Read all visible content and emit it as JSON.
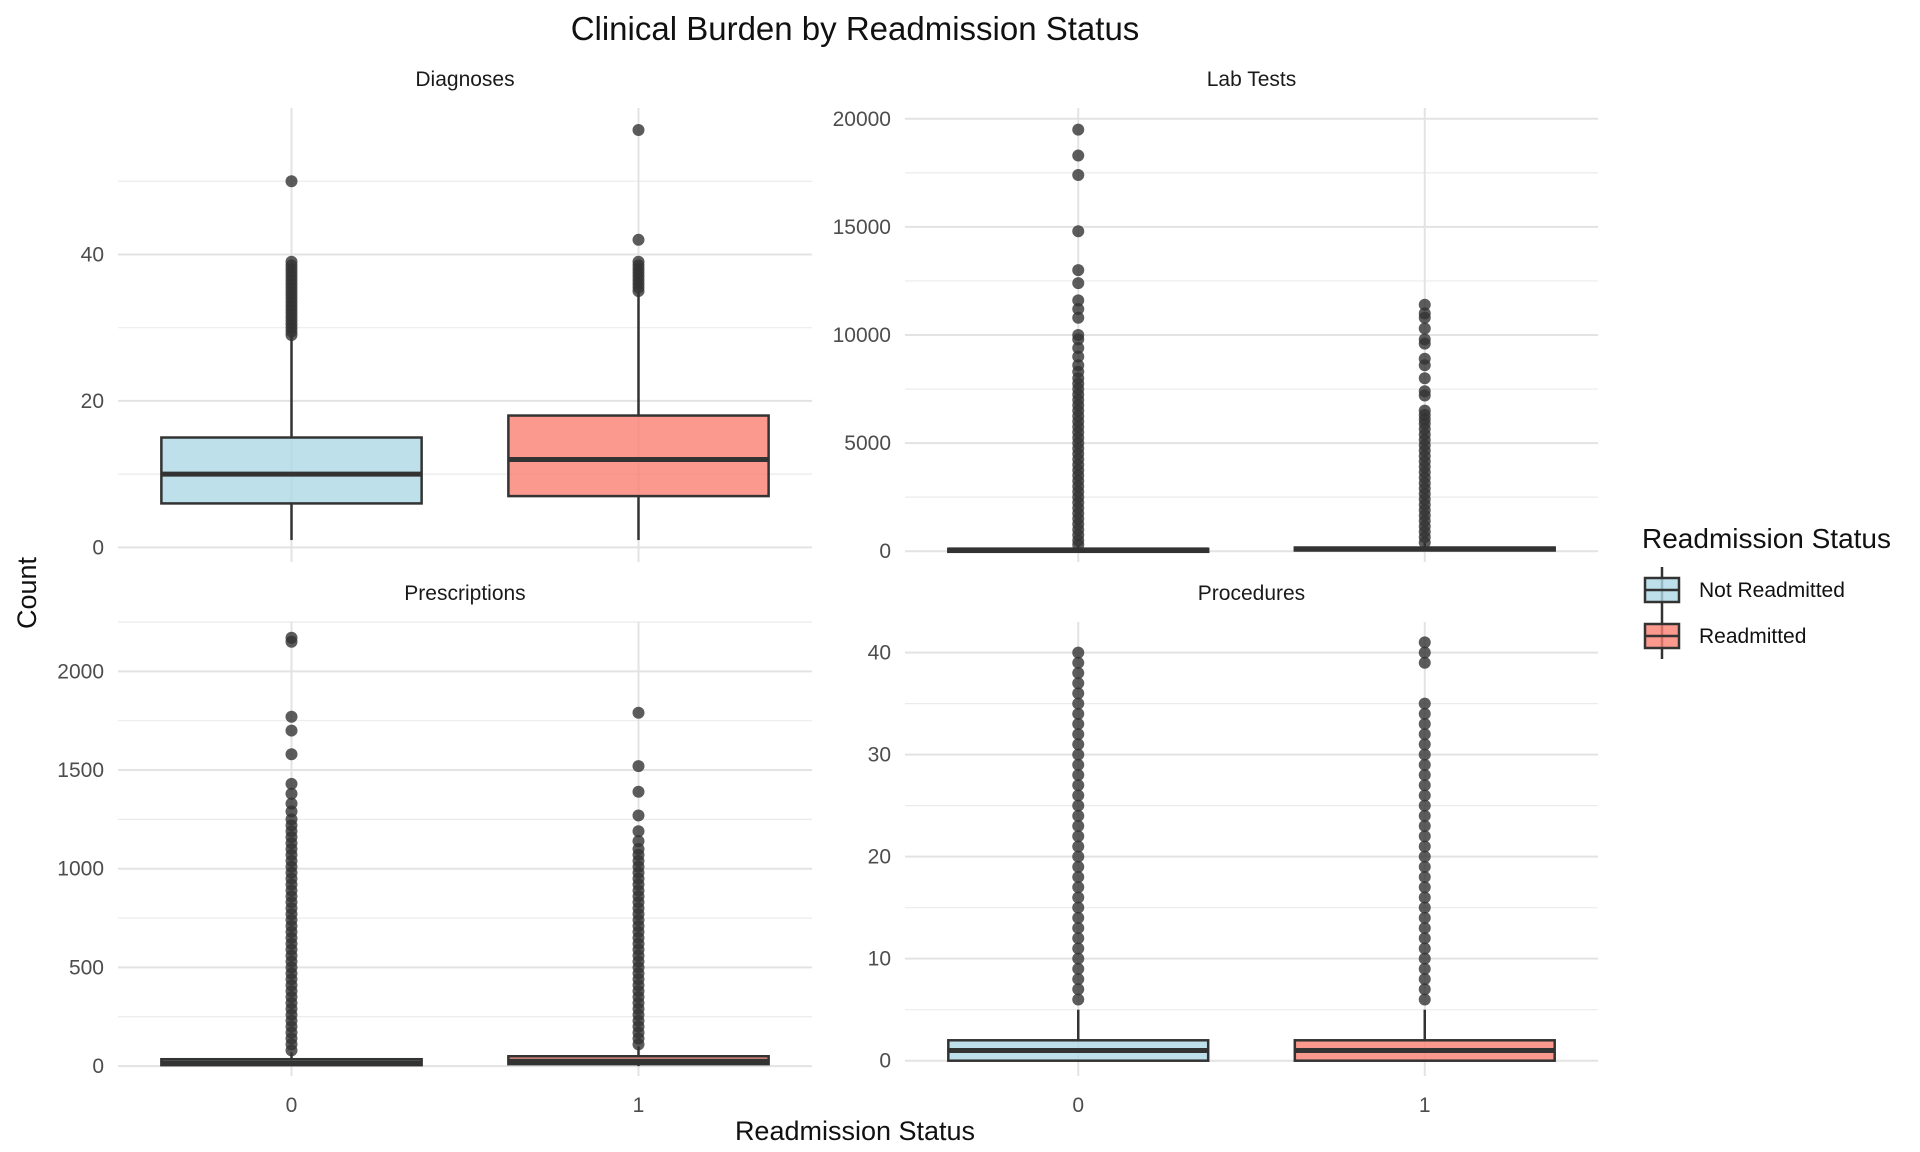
{
  "chart_data": {
    "type": "boxplot",
    "title": "Clinical Burden by Readmission Status",
    "xlabel": "Readmission Status",
    "ylabel": "Count",
    "categories": [
      "0",
      "1"
    ],
    "legend": {
      "title": "Readmission Status",
      "position": "right",
      "entries": [
        {
          "label": "Not Readmitted",
          "color": "#ADD8E6"
        },
        {
          "label": "Readmitted",
          "color": "#FA8072"
        }
      ]
    },
    "grid": true,
    "panels": [
      {
        "name": "Diagnoses",
        "ylim": [
          -2,
          60
        ],
        "yticks": [
          0,
          20,
          40
        ],
        "boxes": [
          {
            "category": "0",
            "group": "Not Readmitted",
            "min": 1,
            "q1": 6,
            "median": 10,
            "q3": 15,
            "max": 29,
            "outliers": [
              29,
              29.5,
              30,
              30.5,
              31,
              31.5,
              32,
              32.5,
              33,
              33.5,
              34,
              34.5,
              35,
              35.5,
              36,
              36.5,
              37,
              37.5,
              38,
              38.5,
              39,
              50
            ]
          },
          {
            "category": "1",
            "group": "Readmitted",
            "min": 1,
            "q1": 7,
            "median": 12,
            "q3": 18,
            "max": 35,
            "outliers": [
              35,
              35.5,
              36,
              36.5,
              37,
              37.5,
              38,
              38.5,
              39,
              42,
              57
            ]
          }
        ]
      },
      {
        "name": "Lab Tests",
        "ylim": [
          -500,
          20500
        ],
        "yticks": [
          0,
          5000,
          10000,
          15000,
          20000
        ],
        "boxes": [
          {
            "category": "0",
            "group": "Not Readmitted",
            "min": 0,
            "q1": 20,
            "median": 60,
            "q3": 110,
            "max": 260,
            "outliers": [
              300,
              500,
              750,
              1000,
              1250,
              1500,
              1750,
              2000,
              2250,
              2500,
              2750,
              3000,
              3250,
              3500,
              3750,
              4000,
              4250,
              4500,
              4750,
              5000,
              5250,
              5500,
              5750,
              6000,
              6250,
              6500,
              6750,
              7000,
              7250,
              7500,
              7750,
              8000,
              8300,
              8600,
              9000,
              9400,
              9800,
              10000,
              10800,
              11200,
              11600,
              12400,
              13000,
              14800,
              17400,
              18300,
              19500
            ]
          },
          {
            "category": "1",
            "group": "Readmitted",
            "min": 0,
            "q1": 40,
            "median": 100,
            "q3": 170,
            "max": 380,
            "outliers": [
              400,
              650,
              900,
              1150,
              1400,
              1650,
              1900,
              2150,
              2400,
              2650,
              2900,
              3150,
              3400,
              3650,
              3900,
              4150,
              4400,
              4650,
              4900,
              5150,
              5400,
              5650,
              5900,
              6100,
              6300,
              6500,
              7200,
              7400,
              8000,
              8600,
              8900,
              9600,
              9800,
              10300,
              10800,
              11000,
              11400
            ]
          }
        ]
      },
      {
        "name": "Prescriptions",
        "ylim": [
          -50,
          2250
        ],
        "yticks": [
          0,
          500,
          1000,
          1500,
          2000
        ],
        "boxes": [
          {
            "category": "0",
            "group": "Not Readmitted",
            "min": 0,
            "q1": 5,
            "median": 15,
            "q3": 35,
            "max": 70,
            "outliers": [
              80,
              110,
              140,
              170,
              200,
              230,
              260,
              290,
              320,
              350,
              380,
              410,
              440,
              470,
              500,
              530,
              560,
              590,
              620,
              650,
              680,
              710,
              740,
              770,
              800,
              830,
              860,
              890,
              920,
              950,
              980,
              1010,
              1040,
              1070,
              1100,
              1130,
              1160,
              1190,
              1220,
              1250,
              1290,
              1330,
              1380,
              1430,
              1580,
              1700,
              1770,
              2150,
              2170
            ]
          },
          {
            "category": "1",
            "group": "Readmitted",
            "min": 0,
            "q1": 10,
            "median": 25,
            "q3": 50,
            "max": 100,
            "outliers": [
              110,
              140,
              170,
              200,
              230,
              260,
              290,
              320,
              350,
              380,
              410,
              440,
              470,
              500,
              530,
              560,
              590,
              620,
              650,
              680,
              710,
              740,
              770,
              800,
              830,
              860,
              890,
              920,
              950,
              980,
              1010,
              1040,
              1070,
              1100,
              1140,
              1190,
              1270,
              1390,
              1520,
              1790
            ]
          }
        ]
      },
      {
        "name": "Procedures",
        "ylim": [
          -1.5,
          43
        ],
        "yticks": [
          0,
          10,
          20,
          30,
          40
        ],
        "boxes": [
          {
            "category": "0",
            "group": "Not Readmitted",
            "min": 0,
            "q1": 0,
            "median": 1,
            "q3": 2,
            "max": 5,
            "outliers": [
              6,
              7,
              8,
              9,
              10,
              11,
              12,
              13,
              14,
              15,
              16,
              17,
              18,
              19,
              20,
              21,
              22,
              23,
              24,
              25,
              26,
              27,
              28,
              29,
              30,
              31,
              32,
              33,
              34,
              35,
              36,
              37,
              38,
              39,
              40
            ]
          },
          {
            "category": "1",
            "group": "Readmitted",
            "min": 0,
            "q1": 0,
            "median": 1,
            "q3": 2,
            "max": 5,
            "outliers": [
              6,
              7,
              8,
              9,
              10,
              11,
              12,
              13,
              14,
              15,
              16,
              17,
              18,
              19,
              20,
              21,
              22,
              23,
              24,
              25,
              26,
              27,
              28,
              29,
              30,
              31,
              32,
              33,
              34,
              35,
              39,
              40,
              41
            ]
          }
        ]
      }
    ]
  }
}
